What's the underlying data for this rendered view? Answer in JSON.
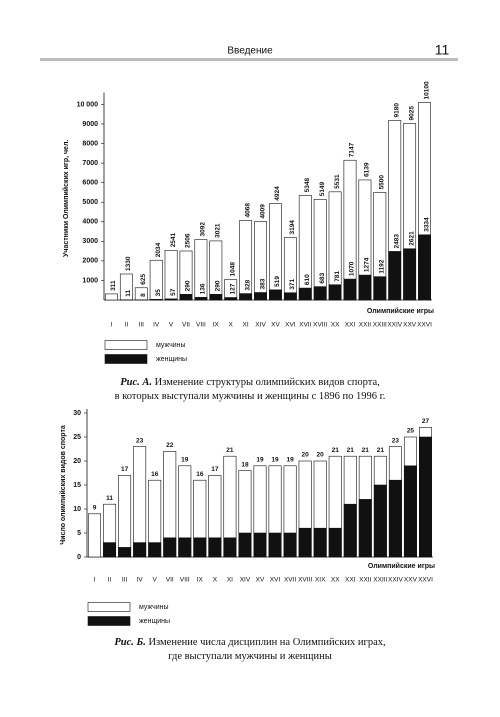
{
  "header": {
    "title": "Введение",
    "page": "11"
  },
  "chart_data": [
    {
      "type": "bar",
      "overlay": true,
      "ylabel": "Участники Олимпийских игр, чел.",
      "xlabel": "Олимпийские игры",
      "caption_label": "Рис. А.",
      "caption_lines": [
        "Изменение структуры олимпийских видов спорта,",
        "в которых выступали мужчины и женщины с 1896 по 1996 г."
      ],
      "categories": [
        "I",
        "II",
        "III",
        "IV",
        "V",
        "VII",
        "VIII",
        "IX",
        "X",
        "XI",
        "XIV",
        "XV",
        "XVI",
        "XVII",
        "XVIII",
        "XX",
        "XXI",
        "XXII",
        "XXIII",
        "XXIV",
        "XXV",
        "XXVI"
      ],
      "series": [
        {
          "name": "мужчины",
          "color": "#ffffff",
          "labels": true,
          "values": [
            311,
            1330,
            625,
            2034,
            2541,
            2506,
            3092,
            3021,
            1048,
            4068,
            4009,
            4924,
            3194,
            5348,
            5149,
            5531,
            7147,
            6139,
            5500,
            9180,
            9025,
            10100
          ]
        },
        {
          "name": "женщины",
          "color": "#111111",
          "labels": true,
          "values": [
            null,
            11,
            8,
            35,
            57,
            290,
            136,
            290,
            127,
            328,
            383,
            519,
            371,
            610,
            683,
            781,
            1070,
            1274,
            1192,
            2483,
            2621,
            3334
          ]
        }
      ],
      "ylim": [
        0,
        10400
      ],
      "yticks": [
        1000,
        2000,
        3000,
        4000,
        5000,
        6000,
        7000,
        8000,
        9000,
        {
          "value": 10000,
          "label": "10 000"
        }
      ]
    },
    {
      "type": "bar",
      "overlay": true,
      "ylabel": "Число олимпийских видов спорта",
      "xlabel": "Олимпийские игры",
      "caption_label": "Рис. Б.",
      "caption_lines": [
        "Изменение числа дисциплин на Олимпийских играх,",
        "где выступали мужчины и женщины"
      ],
      "categories": [
        "I",
        "II",
        "III",
        "IV",
        "V",
        "VII",
        "VIII",
        "IX",
        "X",
        "XI",
        "XIV",
        "XV",
        "XVI",
        "XVII",
        "XVIII",
        "XIX",
        "XX",
        "XXI",
        "XXII",
        "XXIII",
        "XXIV",
        "XXV",
        "XXVI"
      ],
      "series": [
        {
          "name": "мужчины",
          "color": "#ffffff",
          "labels": true,
          "values": [
            9,
            11,
            17,
            23,
            16,
            22,
            19,
            16,
            17,
            21,
            18,
            19,
            19,
            19,
            20,
            20,
            21,
            21,
            21,
            21,
            23,
            25,
            27
          ]
        },
        {
          "name": "женщины",
          "color": "#111111",
          "labels": false,
          "values": [
            null,
            3,
            2,
            3,
            3,
            4,
            4,
            4,
            4,
            4,
            5,
            5,
            5,
            5,
            6,
            6,
            6,
            11,
            12,
            15,
            16,
            19,
            25
          ]
        }
      ],
      "ylim": [
        0,
        30
      ],
      "yticks": [
        0,
        5,
        10,
        15,
        20,
        25,
        30
      ]
    }
  ]
}
